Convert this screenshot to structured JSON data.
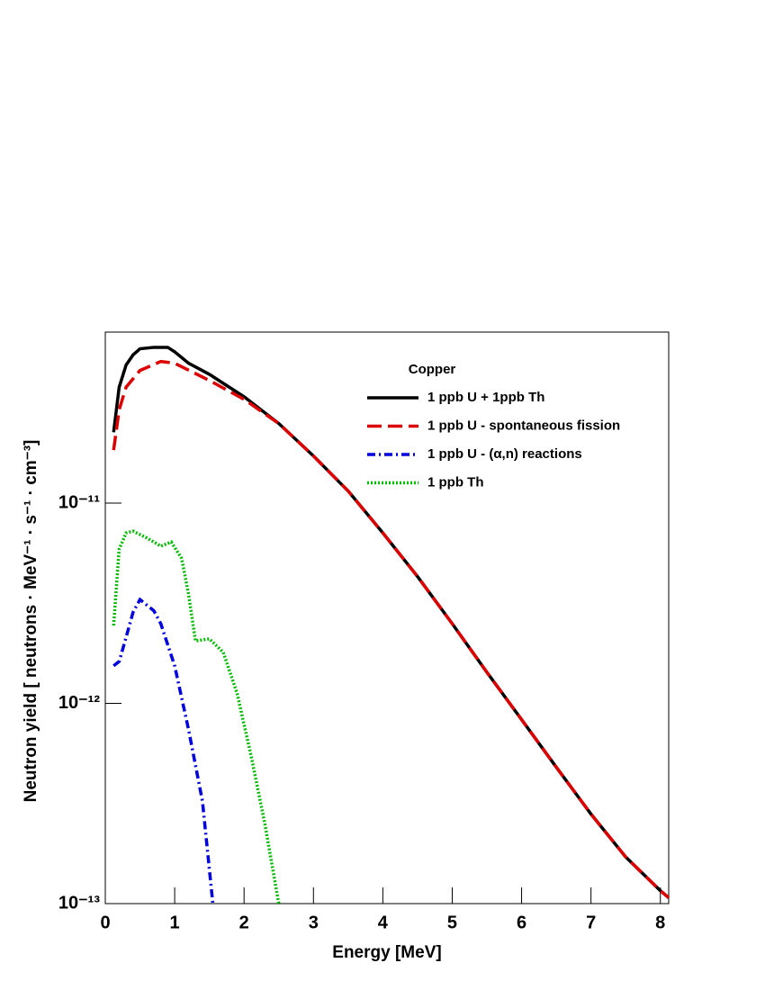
{
  "chart_data": {
    "type": "line",
    "xlabel": "Energy [MeV]",
    "ylabel": "Neutron yield  [ neutrons · MeV⁻¹ · s⁻¹ · cm⁻³]",
    "legend_title": "Copper",
    "legend_position": "upper right",
    "log_y": true,
    "xlim": [
      0,
      8.12
    ],
    "ylim": [
      1e-13,
      7.15e-11
    ],
    "xticks": [
      0,
      1,
      2,
      3,
      4,
      5,
      6,
      7,
      8
    ],
    "yticks": [
      {
        "value": 1e-13,
        "label": "10⁻¹³"
      },
      {
        "value": 1e-12,
        "label": "10⁻¹²"
      },
      {
        "value": 1e-11,
        "label": "10⁻¹¹"
      }
    ],
    "series": [
      {
        "name": " 1 ppb U + 1ppb Th",
        "color": "#000000",
        "linestyle": "solid",
        "x": [
          0.12,
          0.2,
          0.3,
          0.4,
          0.5,
          0.7,
          0.9,
          1.0,
          1.2,
          1.5,
          2.0,
          2.5,
          3.0,
          3.5,
          4.0,
          4.5,
          5.0,
          5.5,
          6.0,
          6.5,
          7.0,
          7.5,
          8.0,
          8.12
        ],
        "values": [
          2.26e-11,
          3.8e-11,
          4.9e-11,
          5.5e-11,
          5.9e-11,
          6e-11,
          6e-11,
          5.7e-11,
          5e-11,
          4.4e-11,
          3.4e-11,
          2.5e-11,
          1.72e-11,
          1.15e-11,
          7.1e-12,
          4.3e-12,
          2.5e-12,
          1.43e-12,
          8.3e-13,
          4.8e-13,
          2.8e-13,
          1.71e-13,
          1.16e-13,
          1.07e-13
        ]
      },
      {
        "name": "1 ppb U - spontaneous fission",
        "color": "#dd0000",
        "linestyle": "dashed",
        "x": [
          0.12,
          0.2,
          0.3,
          0.5,
          0.8,
          1.0,
          1.5,
          2.0,
          2.5,
          3.0,
          3.5,
          4.0,
          4.5,
          5.0,
          5.5,
          6.0,
          6.5,
          7.0,
          7.5,
          8.0,
          8.12
        ],
        "values": [
          1.84e-11,
          2.93e-11,
          3.8e-11,
          4.6e-11,
          5.1e-11,
          5e-11,
          4.1e-11,
          3.3e-11,
          2.5e-11,
          1.72e-11,
          1.15e-11,
          7.1e-12,
          4.3e-12,
          2.5e-12,
          1.43e-12,
          8.3e-13,
          4.8e-13,
          2.8e-13,
          1.71e-13,
          1.16e-13,
          1.07e-13
        ]
      },
      {
        "name": "1 ppb U - (α,n) reactions",
        "color": "#0000dd",
        "linestyle": "dashdot",
        "x": [
          0.12,
          0.2,
          0.3,
          0.4,
          0.5,
          0.7,
          0.8,
          1.0,
          1.2,
          1.4,
          1.55
        ],
        "values": [
          1.54e-12,
          1.62e-12,
          2.14e-12,
          2.85e-12,
          3.3e-12,
          2.9e-12,
          2.5e-12,
          1.54e-12,
          7.4e-13,
          3.25e-13,
          1e-13
        ]
      },
      {
        "name": "1 ppb Th",
        "color": "#00bb00",
        "linestyle": "dotted",
        "x": [
          0.12,
          0.2,
          0.3,
          0.4,
          0.6,
          0.8,
          0.95,
          1.1,
          1.2,
          1.3,
          1.5,
          1.7,
          1.9,
          2.1,
          2.3,
          2.5
        ],
        "values": [
          2.45e-12,
          5.9e-12,
          7.1e-12,
          7.25e-12,
          6.7e-12,
          6.1e-12,
          6.4e-12,
          5.3e-12,
          3.5e-12,
          2.05e-12,
          2.1e-12,
          1.8e-12,
          1.12e-12,
          5.5e-13,
          2.5e-13,
          1e-13
        ]
      }
    ]
  }
}
